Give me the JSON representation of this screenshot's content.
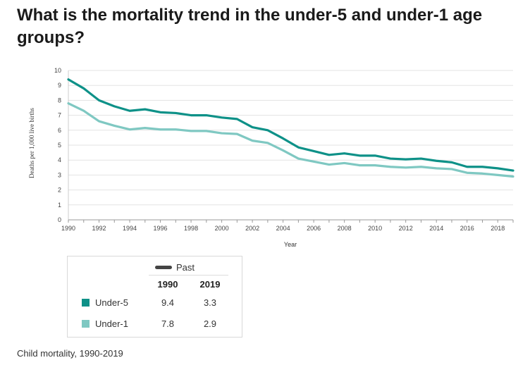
{
  "page": {
    "title": "What is the mortality trend in the under-5 and under-1 age groups?",
    "caption": "Child mortality, 1990-2019"
  },
  "legend": {
    "past_label": "Past",
    "past_color": "#444444",
    "col_1990": "1990",
    "col_2019": "2019",
    "rows": [
      {
        "label": "Under-5",
        "color": "#0e9188",
        "v1990": "9.4",
        "v2019": "3.3"
      },
      {
        "label": "Under-1",
        "color": "#7fc8c2",
        "v1990": "7.8",
        "v2019": "2.9"
      }
    ]
  },
  "chart_data": {
    "type": "line",
    "xlabel": "Year",
    "ylabel": "Deaths per 1,000 live births",
    "xlim": [
      1990,
      2019
    ],
    "ylim": [
      0,
      10
    ],
    "x_ticks": [
      1990,
      1992,
      1994,
      1996,
      1998,
      2000,
      2002,
      2004,
      2006,
      2008,
      2010,
      2012,
      2014,
      2016,
      2018
    ],
    "y_ticks": [
      0,
      1,
      2,
      3,
      4,
      5,
      6,
      7,
      8,
      9,
      10
    ],
    "grid": "horizontal",
    "x": [
      1990,
      1991,
      1992,
      1993,
      1994,
      1995,
      1996,
      1997,
      1998,
      1999,
      2000,
      2001,
      2002,
      2003,
      2004,
      2005,
      2006,
      2007,
      2008,
      2009,
      2010,
      2011,
      2012,
      2013,
      2014,
      2015,
      2016,
      2017,
      2018,
      2019
    ],
    "series": [
      {
        "name": "Under-5",
        "color": "#0e9188",
        "values": [
          9.4,
          8.8,
          8.0,
          7.6,
          7.3,
          7.4,
          7.2,
          7.15,
          7.0,
          7.0,
          6.85,
          6.75,
          6.2,
          6.0,
          5.45,
          4.85,
          4.6,
          4.35,
          4.45,
          4.3,
          4.3,
          4.1,
          4.05,
          4.1,
          3.95,
          3.85,
          3.55,
          3.55,
          3.45,
          3.3
        ]
      },
      {
        "name": "Under-1",
        "color": "#7fc8c2",
        "values": [
          7.8,
          7.3,
          6.6,
          6.3,
          6.05,
          6.15,
          6.05,
          6.05,
          5.95,
          5.95,
          5.8,
          5.75,
          5.3,
          5.15,
          4.65,
          4.1,
          3.9,
          3.7,
          3.8,
          3.65,
          3.65,
          3.55,
          3.5,
          3.55,
          3.45,
          3.4,
          3.15,
          3.1,
          3.0,
          2.9
        ]
      }
    ]
  }
}
